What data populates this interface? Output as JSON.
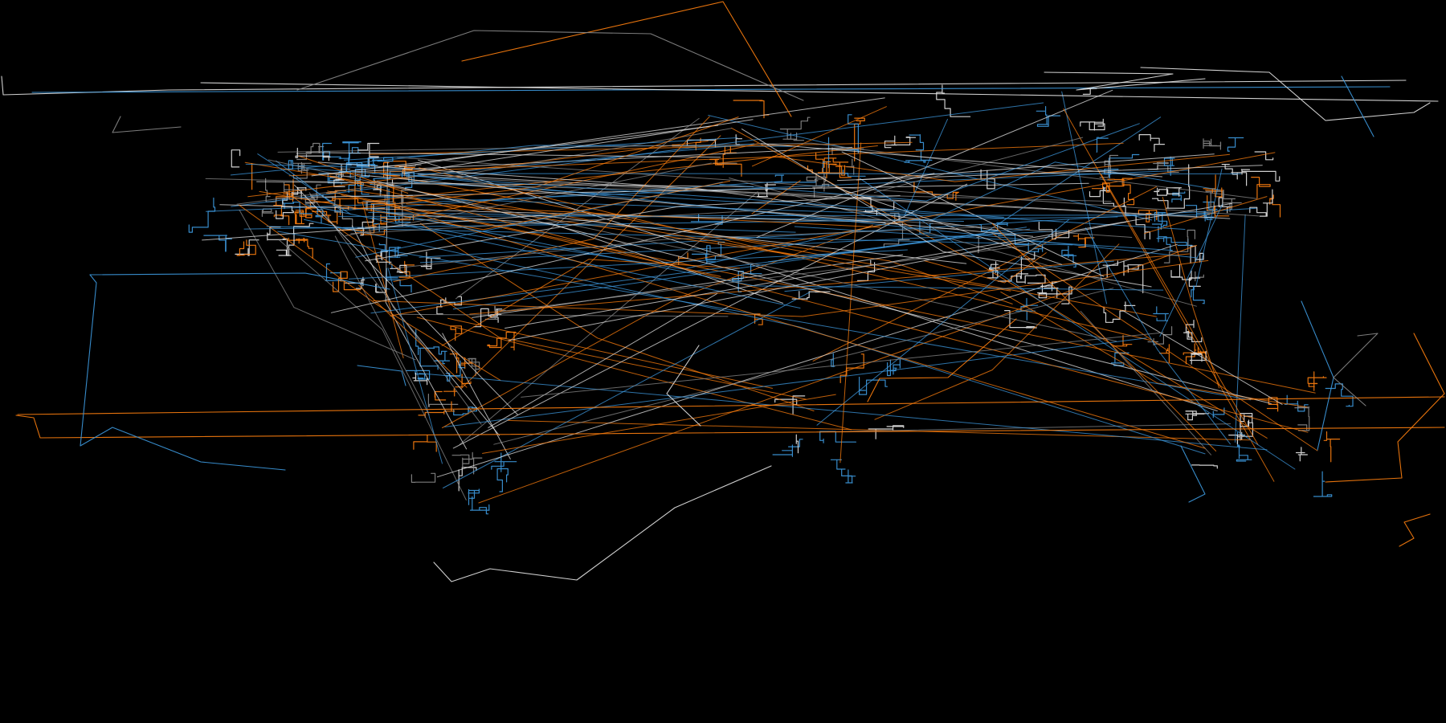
{
  "map": {
    "background": "#000000",
    "projection": "equirectangular",
    "palette": {
      "orange": "#ff7f0e",
      "blue": "#3d9ae0",
      "white": "#e6e6e6",
      "gray": "#8a8a8a"
    },
    "route_families": [
      {
        "name": "orange",
        "color": "#ff7f0e"
      },
      {
        "name": "blue",
        "color": "#3d9ae0"
      },
      {
        "name": "white",
        "color": "#e6e6e6"
      },
      {
        "name": "gray",
        "color": "#8a8a8a"
      }
    ],
    "text_labels": []
  }
}
